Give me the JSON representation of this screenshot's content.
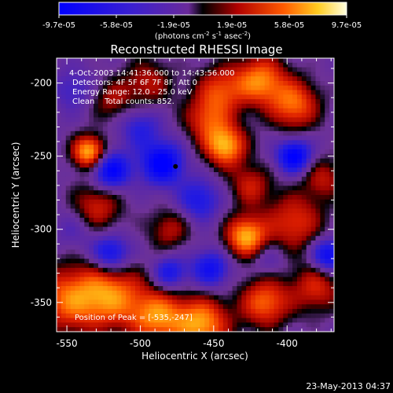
{
  "colorbar": {
    "ticks": [
      "-9.7e-05",
      "-5.8e-05",
      "-1.9e-05",
      "1.9e-05",
      "5.8e-05",
      "9.7e-05"
    ],
    "units": "(photons cm",
    "units_exp1": "-2",
    "units_mid": " s",
    "units_exp2": "-1",
    "units_end": " asec",
    "units_exp3": "-2",
    "units_close": ")"
  },
  "chart_data": {
    "type": "heatmap",
    "title": "Reconstructed RHESSI Image",
    "xlabel": "Heliocentric X (arcsec)",
    "ylabel": "Heliocentric Y (arcsec)",
    "xlim": [
      -557,
      -368
    ],
    "ylim": [
      -370,
      -183
    ],
    "x_ticks": [
      -550,
      -500,
      -450,
      -400
    ],
    "y_ticks": [
      -350,
      -300,
      -250,
      -200
    ],
    "x_tick_labels": [
      "-550",
      "-500",
      "-450",
      "-400"
    ],
    "y_tick_labels": [
      "-350",
      "-300",
      "-250",
      "-200"
    ],
    "color_range": [
      -9.7e-05,
      9.7e-05
    ],
    "annotations": [
      "4-Oct-2003 14:41:36.000 to 14:43:56.000",
      "Detectors: 4F 5F 6F 7F 8F, Att 0",
      "Energy Range: 12.0 - 25.0 keV",
      "Clean    Total counts: 852."
    ],
    "peak_label": "Position of Peak = [-535,-247]",
    "marker": {
      "x": -476,
      "y": -257
    },
    "footer": "23-May-2013 04:37",
    "blobs": [
      {
        "x": -550,
        "y": -348,
        "v": 0.7,
        "s": 16
      },
      {
        "x": -535,
        "y": -247,
        "v": 1.0,
        "s": 8
      },
      {
        "x": -530,
        "y": -285,
        "v": 0.55,
        "s": 12
      },
      {
        "x": -520,
        "y": -345,
        "v": 0.8,
        "s": 16
      },
      {
        "x": -520,
        "y": -212,
        "v": 0.4,
        "s": 10
      },
      {
        "x": -495,
        "y": -200,
        "v": 0.45,
        "s": 12
      },
      {
        "x": -488,
        "y": -360,
        "v": 0.8,
        "s": 13
      },
      {
        "x": -480,
        "y": -300,
        "v": 0.45,
        "s": 10
      },
      {
        "x": -458,
        "y": -365,
        "v": 0.9,
        "s": 13
      },
      {
        "x": -455,
        "y": -225,
        "v": 0.55,
        "s": 11
      },
      {
        "x": -445,
        "y": -205,
        "v": 0.6,
        "s": 12
      },
      {
        "x": -442,
        "y": -243,
        "v": 0.95,
        "s": 10
      },
      {
        "x": -428,
        "y": -305,
        "v": 0.95,
        "s": 10
      },
      {
        "x": -425,
        "y": -270,
        "v": 0.5,
        "s": 10
      },
      {
        "x": -418,
        "y": -198,
        "v": 0.8,
        "s": 12
      },
      {
        "x": -415,
        "y": -350,
        "v": 0.75,
        "s": 12
      },
      {
        "x": -395,
        "y": -215,
        "v": 0.75,
        "s": 12
      },
      {
        "x": -395,
        "y": -295,
        "v": 0.6,
        "s": 14
      },
      {
        "x": -380,
        "y": -340,
        "v": 0.55,
        "s": 12
      },
      {
        "x": -375,
        "y": -265,
        "v": 0.45,
        "s": 10
      },
      {
        "x": -544,
        "y": -300,
        "v": -0.25,
        "s": 10
      },
      {
        "x": -520,
        "y": -260,
        "v": -0.8,
        "s": 9
      },
      {
        "x": -485,
        "y": -255,
        "v": -0.85,
        "s": 10
      },
      {
        "x": -520,
        "y": -317,
        "v": -0.7,
        "s": 9
      },
      {
        "x": -480,
        "y": -330,
        "v": -0.55,
        "s": 8
      },
      {
        "x": -500,
        "y": -230,
        "v": -0.4,
        "s": 10
      },
      {
        "x": -460,
        "y": -280,
        "v": -0.5,
        "s": 10
      },
      {
        "x": -452,
        "y": -327,
        "v": -0.6,
        "s": 9
      },
      {
        "x": -395,
        "y": -250,
        "v": -0.85,
        "s": 8
      },
      {
        "x": -372,
        "y": -318,
        "v": -0.75,
        "s": 8
      },
      {
        "x": -545,
        "y": -205,
        "v": -0.3,
        "s": 10
      },
      {
        "x": -413,
        "y": -320,
        "v": -0.25,
        "s": 8
      }
    ]
  }
}
